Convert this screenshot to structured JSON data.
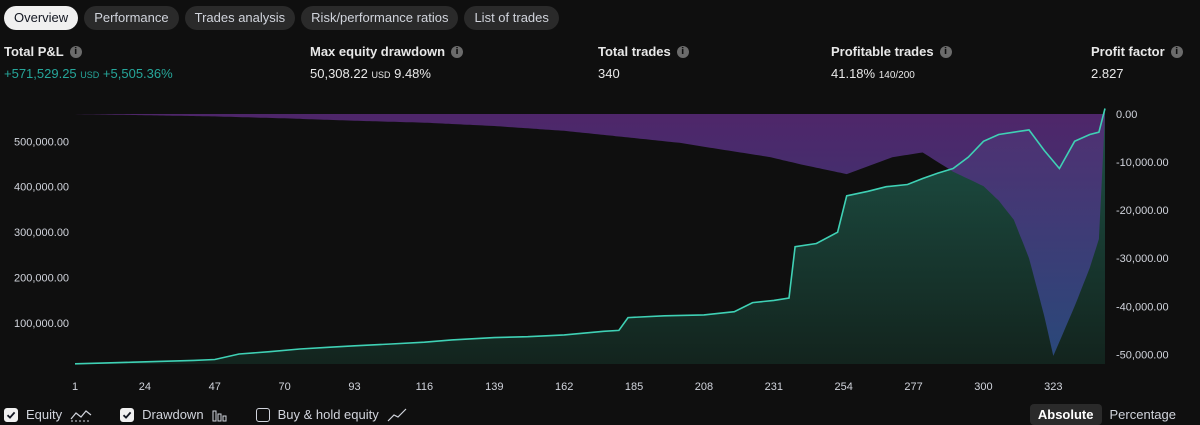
{
  "tabs": [
    {
      "label": "Overview",
      "active": true
    },
    {
      "label": "Performance"
    },
    {
      "label": "Trades analysis"
    },
    {
      "label": "Risk/performance ratios"
    },
    {
      "label": "List of trades"
    }
  ],
  "stats": {
    "total_pl": {
      "label": "Total P&L",
      "value": "+571,529.25",
      "unit": "USD",
      "pct": "+5,505.36%"
    },
    "max_dd": {
      "label": "Max equity drawdown",
      "value": "50,308.22",
      "unit": "USD",
      "pct": "9.48%"
    },
    "total_trades": {
      "label": "Total trades",
      "value": "340"
    },
    "profitable": {
      "label": "Profitable trades",
      "value": "41.18%",
      "sub": "140/200"
    },
    "profit_factor": {
      "label": "Profit factor",
      "value": "2.827"
    }
  },
  "chart_data": {
    "type": "area",
    "x_ticks": [
      "1",
      "24",
      "47",
      "70",
      "93",
      "116",
      "139",
      "162",
      "185",
      "208",
      "231",
      "254",
      "277",
      "300",
      "323"
    ],
    "x_range": [
      1,
      340
    ],
    "y_left": {
      "ticks": [
        "100,000.00",
        "200,000.00",
        "300,000.00",
        "400,000.00",
        "500,000.00"
      ],
      "range": [
        10000,
        560000
      ]
    },
    "y_right": {
      "ticks": [
        "0.00",
        "-10,000.00",
        "-20,000.00",
        "-30,000.00",
        "-40,000.00",
        "-50,000.00"
      ],
      "range": [
        -52000,
        0
      ]
    },
    "series": [
      {
        "name": "Equity",
        "color": "#3fd1b5",
        "points": [
          [
            1,
            10400
          ],
          [
            10,
            12000
          ],
          [
            20,
            14000
          ],
          [
            30,
            16000
          ],
          [
            40,
            18000
          ],
          [
            47,
            20000
          ],
          [
            55,
            32000
          ],
          [
            65,
            37000
          ],
          [
            75,
            43000
          ],
          [
            85,
            47000
          ],
          [
            93,
            50000
          ],
          [
            105,
            54000
          ],
          [
            116,
            58000
          ],
          [
            125,
            63000
          ],
          [
            139,
            68000
          ],
          [
            150,
            70000
          ],
          [
            162,
            74000
          ],
          [
            175,
            82000
          ],
          [
            180,
            84000
          ],
          [
            183,
            112000
          ],
          [
            195,
            116000
          ],
          [
            208,
            118000
          ],
          [
            218,
            125000
          ],
          [
            224,
            145000
          ],
          [
            231,
            150000
          ],
          [
            236,
            155000
          ],
          [
            238,
            268000
          ],
          [
            245,
            275000
          ],
          [
            252,
            300000
          ],
          [
            255,
            380000
          ],
          [
            262,
            390000
          ],
          [
            268,
            400000
          ],
          [
            275,
            405000
          ],
          [
            280,
            418000
          ],
          [
            285,
            430000
          ],
          [
            290,
            440000
          ],
          [
            295,
            465000
          ],
          [
            300,
            500000
          ],
          [
            305,
            515000
          ],
          [
            310,
            520000
          ],
          [
            315,
            525000
          ],
          [
            320,
            480000
          ],
          [
            325,
            440000
          ],
          [
            330,
            500000
          ],
          [
            335,
            515000
          ],
          [
            338,
            520000
          ],
          [
            340,
            572000
          ]
        ]
      },
      {
        "name": "Drawdown",
        "color": "#7b3fa8",
        "points": [
          [
            1,
            0
          ],
          [
            47,
            -500
          ],
          [
            70,
            -900
          ],
          [
            93,
            -1400
          ],
          [
            116,
            -1800
          ],
          [
            139,
            -2500
          ],
          [
            162,
            -3500
          ],
          [
            185,
            -5000
          ],
          [
            200,
            -6000
          ],
          [
            215,
            -7500
          ],
          [
            230,
            -9000
          ],
          [
            240,
            -10500
          ],
          [
            255,
            -12500
          ],
          [
            270,
            -9000
          ],
          [
            280,
            -8000
          ],
          [
            290,
            -12000
          ],
          [
            300,
            -15000
          ],
          [
            305,
            -18000
          ],
          [
            310,
            -22000
          ],
          [
            315,
            -30000
          ],
          [
            320,
            -42000
          ],
          [
            323,
            -50308
          ],
          [
            330,
            -40000
          ],
          [
            335,
            -32000
          ],
          [
            338,
            -26000
          ],
          [
            340,
            0
          ]
        ]
      }
    ]
  },
  "legend": {
    "equity": "Equity",
    "drawdown": "Drawdown",
    "buyhold": "Buy & hold equity"
  },
  "mode": {
    "absolute": "Absolute",
    "percentage": "Percentage"
  }
}
